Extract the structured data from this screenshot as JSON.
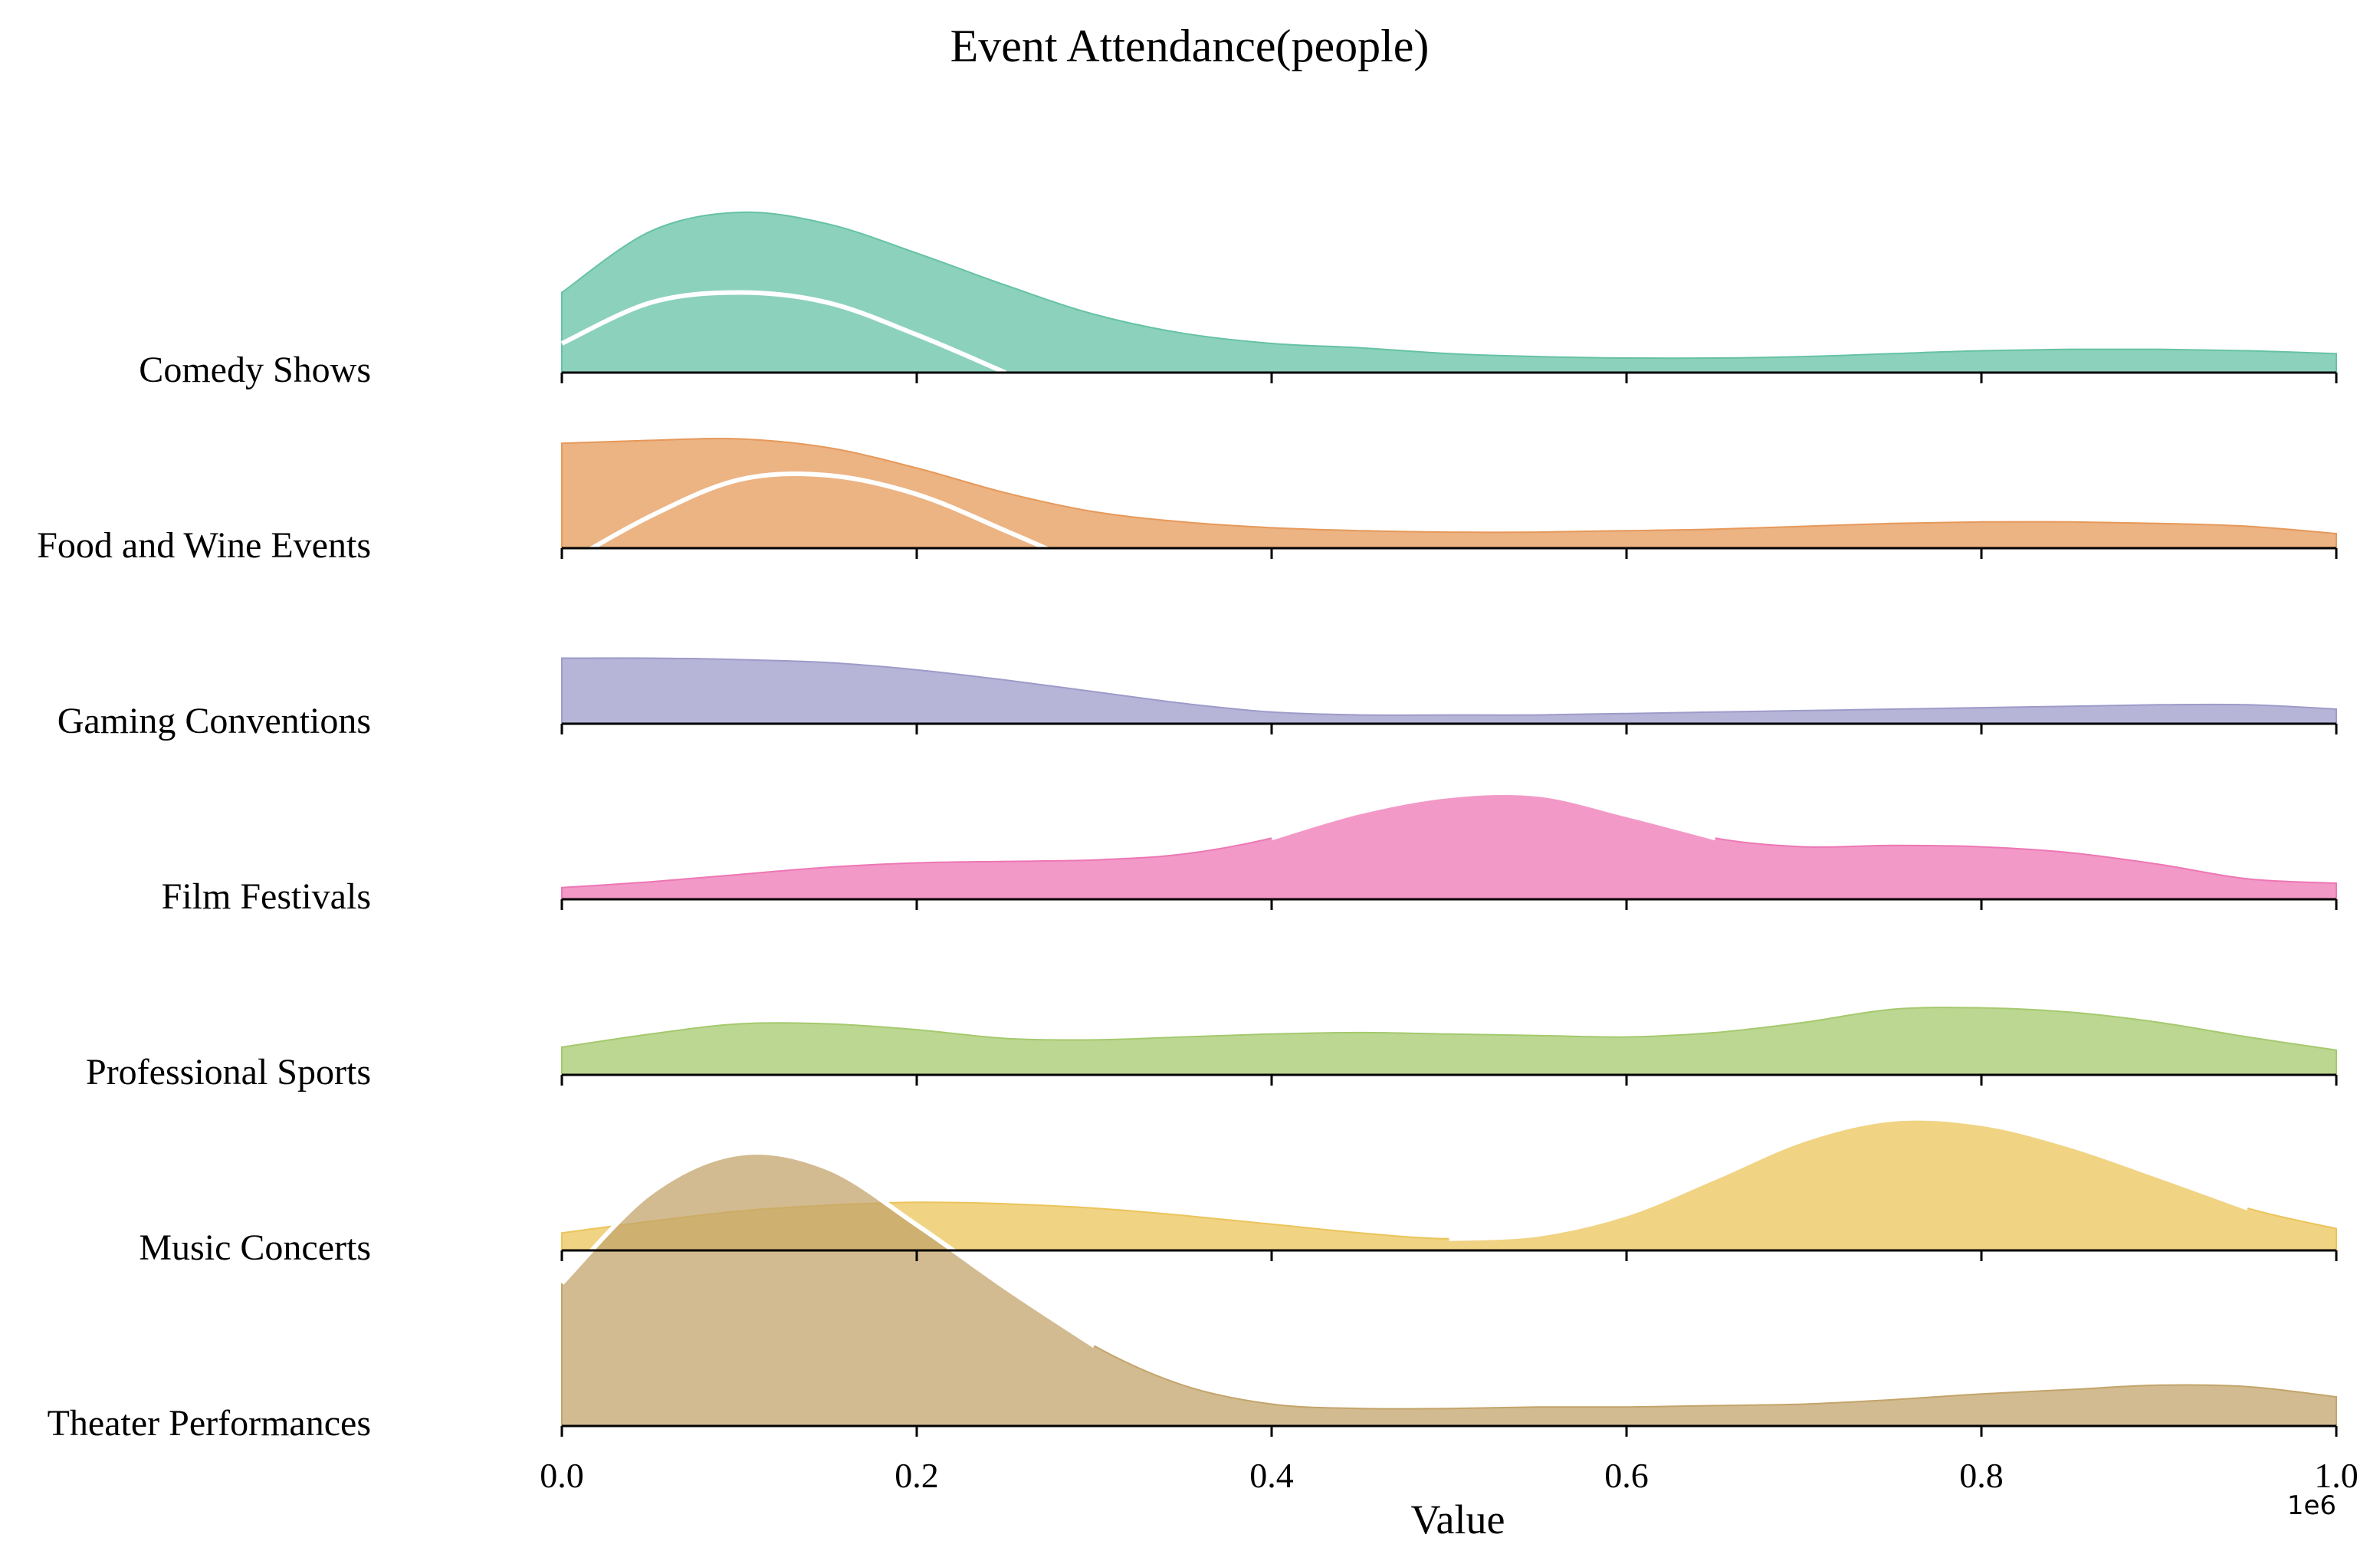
{
  "chart_data": {
    "type": "ridgeline",
    "title": "Event Attendance(people)",
    "xlabel": "Value",
    "x_offset_text": "1e6",
    "xlim": [
      0,
      1000000
    ],
    "x_ticks": [
      0,
      200000,
      400000,
      600000,
      800000,
      1000000
    ],
    "x_tick_labels": [
      "0.0",
      "0.2",
      "0.4",
      "0.6",
      "0.8",
      "1.0"
    ],
    "grid": false,
    "series": [
      {
        "name": "Comedy Shows",
        "color": "#66c2a5",
        "density_x": [
          0,
          50000,
          100000,
          150000,
          200000,
          250000,
          300000,
          350000,
          400000,
          450000,
          500000,
          550000,
          600000,
          650000,
          700000,
          750000,
          800000,
          850000,
          900000,
          950000,
          1000000
        ],
        "density_y": [
          0.55,
          0.97,
          1.1,
          1.02,
          0.82,
          0.6,
          0.4,
          0.27,
          0.2,
          0.17,
          0.13,
          0.11,
          0.1,
          0.1,
          0.11,
          0.13,
          0.15,
          0.16,
          0.16,
          0.15,
          0.13
        ],
        "mean_curve_x": [
          0,
          50000,
          100000,
          150000,
          200000,
          250000
        ],
        "mean_curve_y": [
          0.2,
          0.48,
          0.55,
          0.48,
          0.26,
          0.0
        ]
      },
      {
        "name": "Food and Wine Events",
        "color": "#e6995a",
        "density_x": [
          0,
          50000,
          100000,
          150000,
          200000,
          250000,
          300000,
          350000,
          400000,
          450000,
          500000,
          550000,
          600000,
          650000,
          700000,
          750000,
          800000,
          850000,
          900000,
          950000,
          1000000
        ],
        "density_y": [
          0.72,
          0.74,
          0.75,
          0.69,
          0.55,
          0.38,
          0.25,
          0.18,
          0.14,
          0.12,
          0.11,
          0.11,
          0.12,
          0.13,
          0.15,
          0.17,
          0.18,
          0.18,
          0.17,
          0.15,
          0.1
        ],
        "mean_curve_x": [
          0,
          50000,
          100000,
          150000,
          200000,
          250000,
          300000,
          350000
        ],
        "mean_curve_y": [
          -0.12,
          0.22,
          0.47,
          0.5,
          0.37,
          0.12,
          -0.15,
          -0.45
        ]
      },
      {
        "name": "Gaming Conventions",
        "color": "#9e9bca",
        "density_x": [
          0,
          50000,
          100000,
          150000,
          200000,
          250000,
          300000,
          350000,
          400000,
          450000,
          500000,
          550000,
          600000,
          650000,
          700000,
          750000,
          800000,
          850000,
          900000,
          950000,
          1000000
        ],
        "density_y": [
          0.45,
          0.45,
          0.44,
          0.42,
          0.37,
          0.3,
          0.22,
          0.14,
          0.08,
          0.06,
          0.06,
          0.06,
          0.07,
          0.08,
          0.09,
          0.1,
          0.11,
          0.12,
          0.13,
          0.13,
          0.1
        ],
        "mean_curve_x": [],
        "mean_curve_y": []
      },
      {
        "name": "Film Festivals",
        "color": "#ed77b4",
        "density_x": [
          0,
          50000,
          100000,
          150000,
          200000,
          250000,
          300000,
          350000,
          400000,
          450000,
          500000,
          550000,
          600000,
          650000,
          700000,
          750000,
          800000,
          850000,
          900000,
          950000,
          1000000
        ],
        "density_y": [
          0.08,
          0.12,
          0.17,
          0.22,
          0.25,
          0.26,
          0.27,
          0.31,
          0.42,
          0.6,
          0.71,
          0.72,
          0.58,
          0.42,
          0.36,
          0.37,
          0.36,
          0.32,
          0.24,
          0.14,
          0.11
        ],
        "mean_curve_x": [
          400000,
          450000,
          500000,
          550000,
          600000,
          650000
        ],
        "mean_curve_y": [
          0.42,
          0.6,
          0.71,
          0.72,
          0.58,
          0.42
        ]
      },
      {
        "name": "Professional Sports",
        "color": "#a5c96e",
        "density_x": [
          0,
          50000,
          100000,
          150000,
          200000,
          250000,
          300000,
          350000,
          400000,
          450000,
          500000,
          550000,
          600000,
          650000,
          700000,
          750000,
          800000,
          850000,
          900000,
          950000,
          1000000
        ],
        "density_y": [
          0.19,
          0.28,
          0.35,
          0.35,
          0.31,
          0.25,
          0.24,
          0.26,
          0.28,
          0.29,
          0.28,
          0.27,
          0.26,
          0.29,
          0.36,
          0.45,
          0.46,
          0.43,
          0.36,
          0.26,
          0.17
        ],
        "mean_curve_x": [],
        "mean_curve_y": []
      },
      {
        "name": "Music Concerts",
        "color": "#ebc45a",
        "density_x": [
          0,
          50000,
          100000,
          150000,
          200000,
          250000,
          300000,
          350000,
          400000,
          450000,
          500000,
          550000,
          600000,
          650000,
          700000,
          750000,
          800000,
          850000,
          900000,
          950000,
          1000000
        ],
        "density_y": [
          0.12,
          0.2,
          0.27,
          0.31,
          0.33,
          0.32,
          0.29,
          0.24,
          0.18,
          0.12,
          0.08,
          0.11,
          0.25,
          0.5,
          0.76,
          0.9,
          0.87,
          0.72,
          0.51,
          0.29,
          0.15
        ],
        "mean_curve_x": [
          500000,
          550000,
          600000,
          650000,
          700000,
          750000,
          800000,
          850000,
          900000,
          950000
        ],
        "mean_curve_y": [
          0.08,
          0.11,
          0.25,
          0.5,
          0.76,
          0.9,
          0.87,
          0.72,
          0.51,
          0.29
        ]
      },
      {
        "name": "Theater Performances",
        "color": "#c3a46b",
        "density_x": [
          0,
          50000,
          100000,
          150000,
          200000,
          250000,
          300000,
          350000,
          400000,
          450000,
          500000,
          550000,
          600000,
          650000,
          700000,
          750000,
          800000,
          850000,
          900000,
          950000,
          1000000
        ],
        "density_y": [
          0.98,
          1.6,
          1.87,
          1.77,
          1.38,
          0.95,
          0.55,
          0.28,
          0.15,
          0.12,
          0.12,
          0.13,
          0.13,
          0.14,
          0.15,
          0.18,
          0.22,
          0.25,
          0.28,
          0.27,
          0.2
        ],
        "mean_curve_x": [
          0,
          50000,
          100000,
          150000,
          200000,
          250000,
          300000
        ],
        "mean_curve_y": [
          0.98,
          1.6,
          1.87,
          1.77,
          1.38,
          0.95,
          0.55
        ]
      }
    ]
  }
}
